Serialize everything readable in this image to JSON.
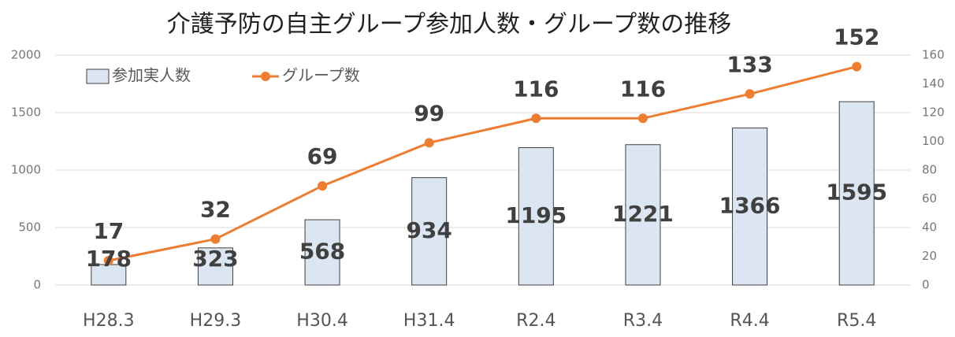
{
  "chart_data": {
    "type": "bar_line",
    "title": "介護予防の自主グループ参加人数・グループ数の推移",
    "categories": [
      "H28.3",
      "H29.3",
      "H30.4",
      "H31.4",
      "R2.4",
      "R3.4",
      "R4.4",
      "R5.4"
    ],
    "series": [
      {
        "name": "参加実人数",
        "type": "bar",
        "color": "#dce6f2",
        "values": [
          178,
          323,
          568,
          934,
          1195,
          1221,
          1366,
          1595
        ]
      },
      {
        "name": "グループ数",
        "type": "line",
        "color": "#ed7d31",
        "axis": "y2",
        "values": [
          17,
          32,
          69,
          99,
          116,
          116,
          133,
          152
        ]
      }
    ],
    "ylim": [
      0,
      2000
    ],
    "yticks": [
      0,
      500,
      1000,
      1500,
      2000
    ],
    "y2lim": [
      0,
      160
    ],
    "y2ticks": [
      0,
      20,
      40,
      60,
      80,
      100,
      120,
      140,
      160
    ],
    "grid": true,
    "legend": "top-left"
  }
}
